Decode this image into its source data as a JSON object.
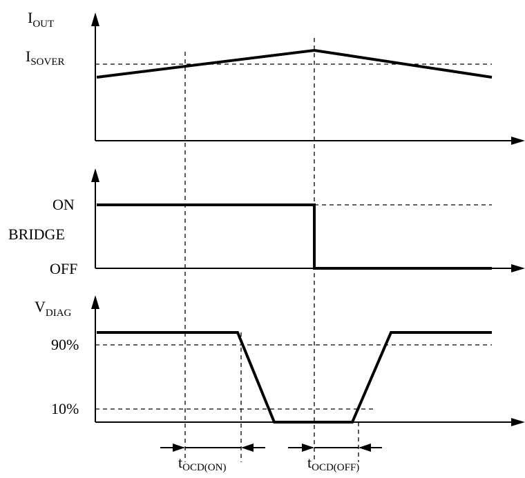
{
  "panels": {
    "iout": {
      "y_label_main": "I",
      "y_label_sub": "OUT",
      "threshold_main": "I",
      "threshold_sub": "SOVER"
    },
    "bridge": {
      "on_label": "ON",
      "signal_label": "BRIDGE",
      "off_label": "OFF"
    },
    "vdiag": {
      "y_label_main": "V",
      "y_label_sub": "DIAG",
      "high_level": "90%",
      "low_level": "10%"
    }
  },
  "timing": {
    "on_main": "t",
    "on_sub": "OCD(ON)",
    "off_main": "t",
    "off_sub": "OCD(OFF)"
  }
}
